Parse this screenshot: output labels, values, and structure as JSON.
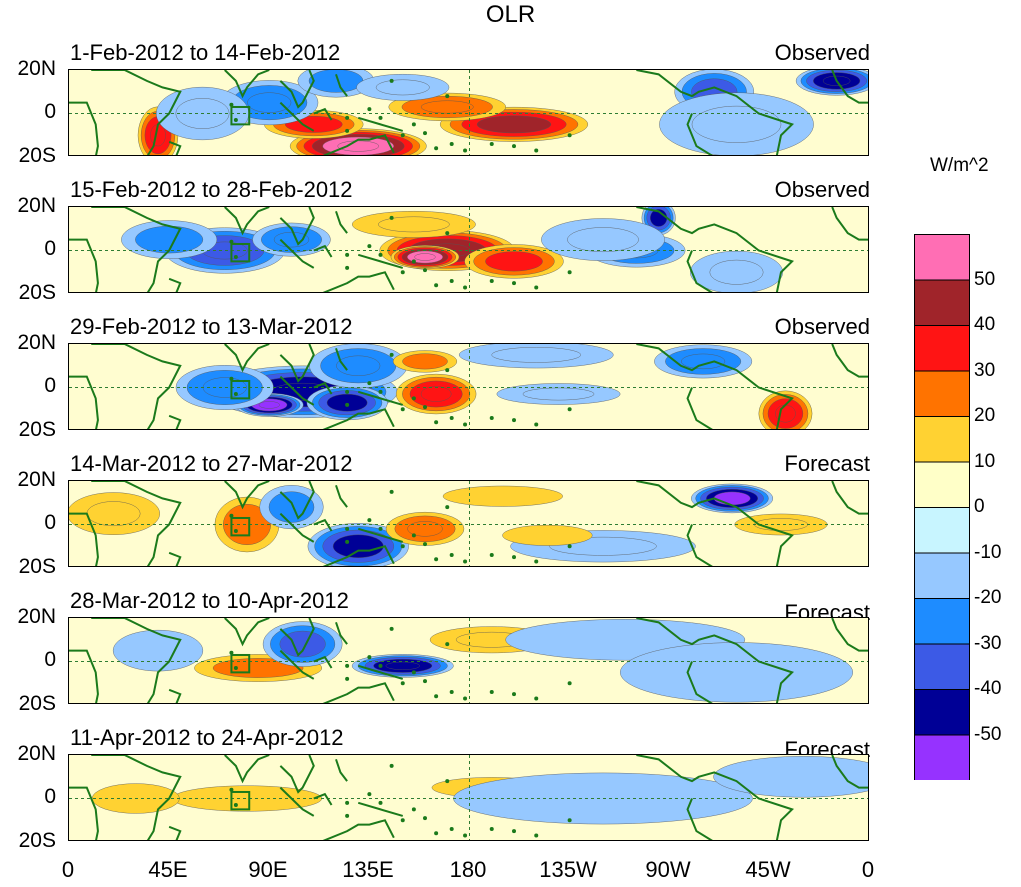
{
  "chart_data": {
    "type": "heatmap",
    "title": "OLR",
    "units_label": "W/m^2",
    "x_ticks": [
      "0",
      "45E",
      "90E",
      "135E",
      "180",
      "135W",
      "90W",
      "45W",
      "0"
    ],
    "y_ticks": [
      "20N",
      "0",
      "20S"
    ],
    "colorbar": {
      "levels": [
        50,
        40,
        30,
        20,
        10,
        0,
        -10,
        -20,
        -30,
        -40,
        -50
      ],
      "colors": [
        "#ff6eb4",
        "#a0242a",
        "#ff1414",
        "#ff7300",
        "#ffd232",
        "#ffffc8",
        "#c8f5ff",
        "#96c8ff",
        "#1e8cff",
        "#3c5ae6",
        "#000096",
        "#9632ff"
      ]
    },
    "panels": [
      {
        "period": "1-Feb-2012 to 14-Feb-2012",
        "label": "Observed",
        "features": [
          {
            "lon": 40,
            "lat": -10,
            "value": 35,
            "sx": 6,
            "sy": 10
          },
          {
            "lon": 130,
            "lat": -15,
            "value": 55,
            "sx": 20,
            "sy": 6
          },
          {
            "lon": 110,
            "lat": -5,
            "value": 30,
            "sx": 15,
            "sy": 5
          },
          {
            "lon": 200,
            "lat": -5,
            "value": 40,
            "sx": 22,
            "sy": 6
          },
          {
            "lon": 170,
            "lat": 3,
            "value": 25,
            "sx": 18,
            "sy": 5
          },
          {
            "lon": 90,
            "lat": 5,
            "value": -25,
            "sx": 15,
            "sy": 8
          },
          {
            "lon": 60,
            "lat": 0,
            "value": -15,
            "sx": 15,
            "sy": 10
          },
          {
            "lon": 120,
            "lat": 15,
            "value": -20,
            "sx": 12,
            "sy": 6
          },
          {
            "lon": 150,
            "lat": 12,
            "value": -15,
            "sx": 15,
            "sy": 5
          },
          {
            "lon": 290,
            "lat": 10,
            "value": -30,
            "sx": 12,
            "sy": 8
          },
          {
            "lon": 345,
            "lat": 15,
            "value": -45,
            "sx": 12,
            "sy": 5
          },
          {
            "lon": 300,
            "lat": -5,
            "value": -15,
            "sx": 25,
            "sy": 12
          }
        ]
      },
      {
        "period": "15-Feb-2012 to 28-Feb-2012",
        "label": "Observed",
        "features": [
          {
            "lon": 170,
            "lat": 0,
            "value": 45,
            "sx": 20,
            "sy": 7
          },
          {
            "lon": 160,
            "lat": -3,
            "value": 55,
            "sx": 10,
            "sy": 4
          },
          {
            "lon": 200,
            "lat": -5,
            "value": 30,
            "sx": 15,
            "sy": 6
          },
          {
            "lon": 155,
            "lat": 12,
            "value": 15,
            "sx": 20,
            "sy": 5
          },
          {
            "lon": 70,
            "lat": 0,
            "value": -35,
            "sx": 18,
            "sy": 8
          },
          {
            "lon": 100,
            "lat": 5,
            "value": -25,
            "sx": 12,
            "sy": 6
          },
          {
            "lon": 45,
            "lat": 5,
            "value": -20,
            "sx": 15,
            "sy": 7
          },
          {
            "lon": 265,
            "lat": 15,
            "value": -40,
            "sx": 5,
            "sy": 6
          },
          {
            "lon": 255,
            "lat": 0,
            "value": -25,
            "sx": 15,
            "sy": 6
          },
          {
            "lon": 240,
            "lat": 5,
            "value": -15,
            "sx": 20,
            "sy": 8
          },
          {
            "lon": 300,
            "lat": -10,
            "value": -15,
            "sx": 15,
            "sy": 8
          }
        ]
      },
      {
        "period": "29-Feb-2012 to 13-Mar-2012",
        "label": "Observed",
        "features": [
          {
            "lon": 105,
            "lat": -2,
            "value": -45,
            "sx": 28,
            "sy": 9
          },
          {
            "lon": 90,
            "lat": -8,
            "value": -55,
            "sx": 10,
            "sy": 4
          },
          {
            "lon": 125,
            "lat": -7,
            "value": -40,
            "sx": 12,
            "sy": 6
          },
          {
            "lon": 70,
            "lat": 0,
            "value": -25,
            "sx": 15,
            "sy": 8
          },
          {
            "lon": 130,
            "lat": 10,
            "value": -25,
            "sx": 15,
            "sy": 8
          },
          {
            "lon": 165,
            "lat": -3,
            "value": 35,
            "sx": 12,
            "sy": 7
          },
          {
            "lon": 160,
            "lat": 12,
            "value": 20,
            "sx": 10,
            "sy": 4
          },
          {
            "lon": 322,
            "lat": -12,
            "value": 35,
            "sx": 8,
            "sy": 8
          },
          {
            "lon": 210,
            "lat": 15,
            "value": -15,
            "sx": 25,
            "sy": 5
          },
          {
            "lon": 220,
            "lat": -3,
            "value": -15,
            "sx": 20,
            "sy": 4
          },
          {
            "lon": 285,
            "lat": 12,
            "value": -25,
            "sx": 15,
            "sy": 6
          }
        ]
      },
      {
        "period": "14-Mar-2012 to 27-Mar-2012",
        "label": "Forecast",
        "features": [
          {
            "lon": 80,
            "lat": 0,
            "value": 22,
            "sx": 10,
            "sy": 10
          },
          {
            "lon": 20,
            "lat": 5,
            "value": 15,
            "sx": 15,
            "sy": 8
          },
          {
            "lon": 130,
            "lat": -10,
            "value": -40,
            "sx": 15,
            "sy": 8
          },
          {
            "lon": 160,
            "lat": -2,
            "value": 25,
            "sx": 12,
            "sy": 6
          },
          {
            "lon": 195,
            "lat": 13,
            "value": 12,
            "sx": 20,
            "sy": 4
          },
          {
            "lon": 298,
            "lat": 12,
            "value": -50,
            "sx": 12,
            "sy": 5
          },
          {
            "lon": 320,
            "lat": 0,
            "value": 15,
            "sx": 15,
            "sy": 4
          },
          {
            "lon": 100,
            "lat": 8,
            "value": -20,
            "sx": 10,
            "sy": 8
          },
          {
            "lon": 240,
            "lat": -10,
            "value": -15,
            "sx": 30,
            "sy": 6
          },
          {
            "lon": 215,
            "lat": -5,
            "value": 12,
            "sx": 15,
            "sy": 4
          }
        ]
      },
      {
        "period": "28-Mar-2012 to 10-Apr-2012",
        "label": "Forecast",
        "features": [
          {
            "lon": 85,
            "lat": -3,
            "value": 20,
            "sx": 20,
            "sy": 5
          },
          {
            "lon": 150,
            "lat": -2,
            "value": -45,
            "sx": 15,
            "sy": 4
          },
          {
            "lon": 105,
            "lat": 8,
            "value": -30,
            "sx": 12,
            "sy": 8
          },
          {
            "lon": 190,
            "lat": 10,
            "value": 15,
            "sx": 20,
            "sy": 5
          },
          {
            "lon": 250,
            "lat": 10,
            "value": -12,
            "sx": 40,
            "sy": 8
          },
          {
            "lon": 300,
            "lat": -5,
            "value": -10,
            "sx": 40,
            "sy": 12
          },
          {
            "lon": 40,
            "lat": 5,
            "value": -12,
            "sx": 15,
            "sy": 8
          }
        ]
      },
      {
        "period": "11-Apr-2012 to 24-Apr-2012",
        "label": "Forecast",
        "features": [
          {
            "lon": 80,
            "lat": 0,
            "value": 12,
            "sx": 25,
            "sy": 5
          },
          {
            "lon": 190,
            "lat": 5,
            "value": 12,
            "sx": 20,
            "sy": 4
          },
          {
            "lon": 30,
            "lat": 0,
            "value": 10,
            "sx": 15,
            "sy": 6
          },
          {
            "lon": 240,
            "lat": 0,
            "value": -12,
            "sx": 50,
            "sy": 10
          },
          {
            "lon": 330,
            "lat": 10,
            "value": -12,
            "sx": 30,
            "sy": 8
          }
        ]
      }
    ]
  }
}
